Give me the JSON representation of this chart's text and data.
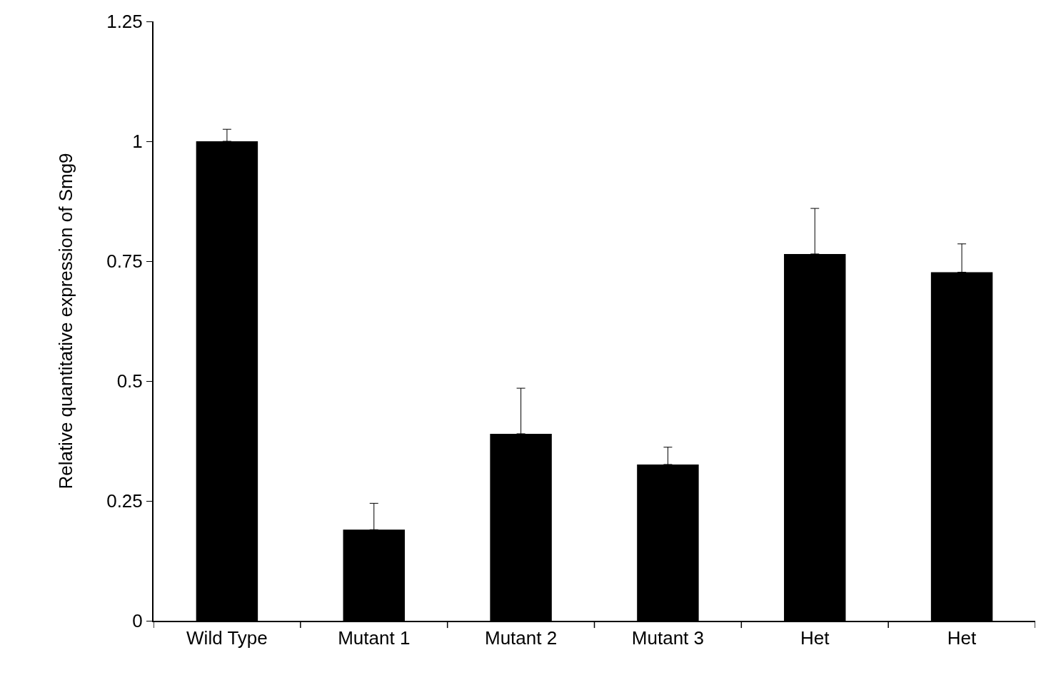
{
  "chart_data": {
    "type": "bar",
    "ylabel": "Relative quantitative expression of Smg9",
    "categories": [
      "Wild Type",
      "Mutant 1",
      "Mutant 2",
      "Mutant 3",
      "Het",
      "Het"
    ],
    "values": [
      1.0,
      0.19,
      0.39,
      0.326,
      0.765,
      0.727
    ],
    "errors": [
      [
        1.0,
        1.025
      ],
      [
        0.19,
        0.245
      ],
      [
        0.39,
        0.485
      ],
      [
        0.326,
        0.362
      ],
      [
        0.765,
        0.86
      ],
      [
        0.727,
        0.786
      ]
    ],
    "color": "#000000",
    "ylim": [
      0,
      1.25
    ],
    "yticks": [
      0,
      0.25,
      0.5,
      0.75,
      1,
      1.25
    ],
    "legend": false
  }
}
